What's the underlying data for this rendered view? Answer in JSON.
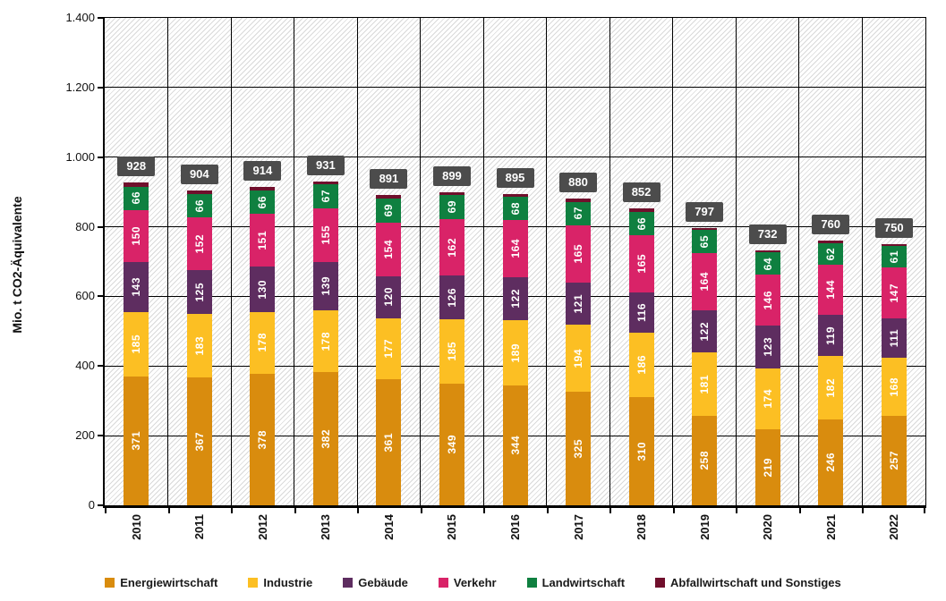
{
  "chart_data": {
    "type": "bar",
    "stacked": true,
    "title": "",
    "ylabel": "Mio. t CO2-Äquivalente",
    "ylim": [
      0,
      1400
    ],
    "ytick_step": 200,
    "ytick_labels": [
      "0",
      "200",
      "400",
      "600",
      "800",
      "1.000",
      "1.200",
      "1.400"
    ],
    "grid": true,
    "plot_background": "hatched-diagonal",
    "legend_position": "bottom",
    "categories": [
      "2010",
      "2011",
      "2012",
      "2013",
      "2014",
      "2015",
      "2016",
      "2017",
      "2018",
      "2019",
      "2020",
      "2021",
      "2022"
    ],
    "series": [
      {
        "name": "Energiewirtschaft",
        "color": "#D98C0E",
        "values": [
          371,
          367,
          378,
          382,
          361,
          349,
          344,
          325,
          310,
          258,
          219,
          246,
          257
        ]
      },
      {
        "name": "Industrie",
        "color": "#FCBF23",
        "values": [
          185,
          183,
          178,
          178,
          177,
          185,
          189,
          194,
          186,
          181,
          174,
          182,
          168
        ]
      },
      {
        "name": "Gebäude",
        "color": "#5E2D60",
        "values": [
          143,
          125,
          130,
          139,
          120,
          126,
          122,
          121,
          116,
          122,
          123,
          119,
          111
        ]
      },
      {
        "name": "Verkehr",
        "color": "#D92368",
        "values": [
          150,
          152,
          151,
          155,
          154,
          162,
          164,
          165,
          165,
          164,
          146,
          144,
          147
        ]
      },
      {
        "name": "Landwirtschaft",
        "color": "#0F8040",
        "values": [
          66,
          66,
          66,
          67,
          69,
          69,
          68,
          67,
          66,
          65,
          64,
          62,
          61
        ]
      },
      {
        "name": "Abfallwirtschaft und Sonstiges",
        "color": "#700F2C",
        "show_value_labels": false,
        "values": [
          13,
          11,
          11,
          10,
          10,
          8,
          8,
          8,
          9,
          7,
          6,
          7,
          6
        ]
      }
    ],
    "totals": [
      928,
      904,
      914,
      931,
      891,
      899,
      895,
      880,
      852,
      797,
      732,
      760,
      750
    ],
    "total_label_bg": "#4C4C4C",
    "total_label_color": "#FFFFFF"
  }
}
